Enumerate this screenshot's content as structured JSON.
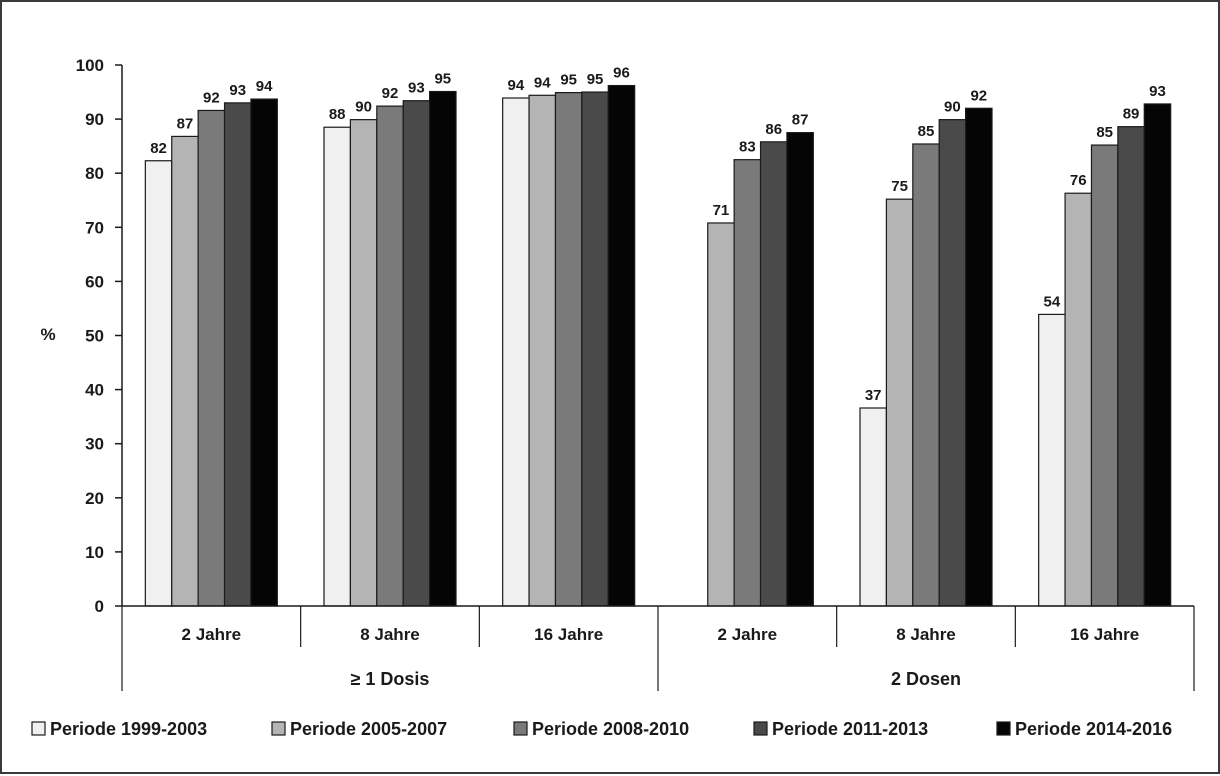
{
  "chart_data": {
    "type": "bar",
    "ylabel": "%",
    "ylim": [
      0,
      100
    ],
    "yticks": [
      0,
      10,
      20,
      30,
      40,
      50,
      60,
      70,
      80,
      90,
      100
    ],
    "grid": false,
    "legend_position": "bottom",
    "groups": [
      {
        "label": "≥ 1 Dosis",
        "categories": [
          "2 Jahre",
          "8 Jahre",
          "16 Jahre"
        ]
      },
      {
        "label": "2 Dosen",
        "categories": [
          "2 Jahre",
          "8 Jahre",
          "16 Jahre"
        ]
      }
    ],
    "categories": [
      "2 Jahre",
      "8 Jahre",
      "16 Jahre",
      "2 Jahre",
      "8 Jahre",
      "16 Jahre"
    ],
    "series": [
      {
        "name": "Periode 1999-2003",
        "color": "#f0f0f0",
        "values": [
          82.3,
          88.5,
          93.9,
          null,
          36.6,
          53.9
        ],
        "labels": [
          "82",
          "88",
          "94",
          "",
          "37",
          "54"
        ]
      },
      {
        "name": "Periode 2005-2007",
        "color": "#b4b4b4",
        "values": [
          86.8,
          89.9,
          94.4,
          70.8,
          75.2,
          76.3
        ],
        "labels": [
          "87",
          "90",
          "94",
          "71",
          "75",
          "76"
        ]
      },
      {
        "name": "Periode 2008-2010",
        "color": "#7a7a7a",
        "values": [
          91.6,
          92.4,
          94.9,
          82.5,
          85.4,
          85.2
        ],
        "labels": [
          "92",
          "92",
          "95",
          "83",
          "85",
          "85"
        ]
      },
      {
        "name": "Periode 2011-2013",
        "color": "#4a4a4a",
        "values": [
          93.0,
          93.4,
          95.0,
          85.8,
          89.9,
          88.6
        ],
        "labels": [
          "93",
          "93",
          "95",
          "86",
          "90",
          "89"
        ]
      },
      {
        "name": "Periode 2014-2016",
        "color": "#050505",
        "values": [
          93.7,
          95.1,
          96.2,
          87.5,
          92.0,
          92.8
        ],
        "labels": [
          "94",
          "95",
          "96",
          "87",
          "92",
          "93"
        ]
      }
    ]
  }
}
